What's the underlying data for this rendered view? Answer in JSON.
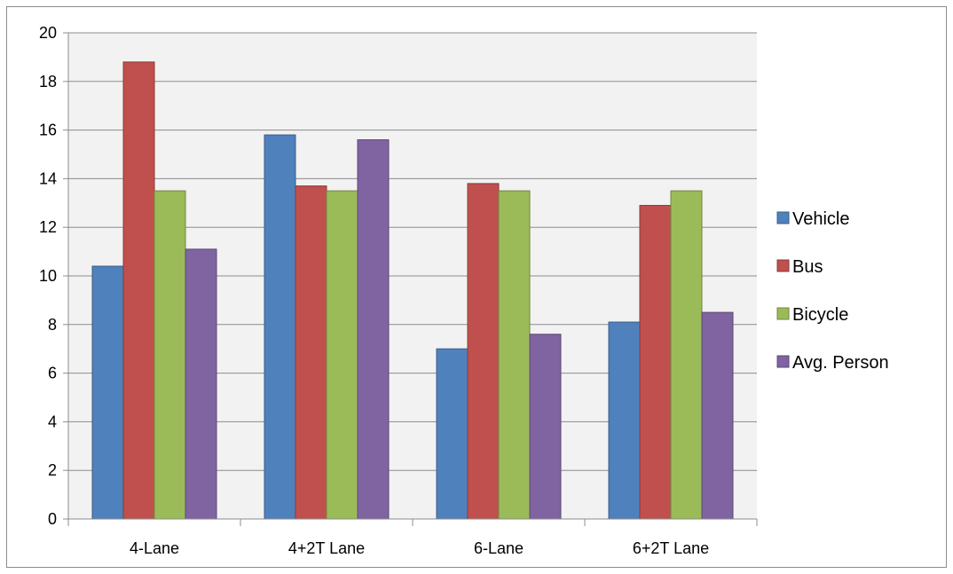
{
  "chart_data": {
    "type": "bar",
    "categories": [
      "4-Lane",
      "4+2T Lane",
      "6-Lane",
      "6+2T Lane"
    ],
    "series": [
      {
        "name": "Vehicle",
        "color": "#4f81bd",
        "values": [
          10.4,
          15.8,
          7.0,
          8.1
        ]
      },
      {
        "name": "Bus",
        "color": "#c0504d",
        "values": [
          18.8,
          13.7,
          13.8,
          12.9
        ]
      },
      {
        "name": "Bicycle",
        "color": "#9bbb59",
        "values": [
          13.5,
          13.5,
          13.5,
          13.5
        ]
      },
      {
        "name": "Avg. Person",
        "color": "#8064a2",
        "values": [
          11.1,
          15.6,
          7.6,
          8.5
        ]
      }
    ],
    "ylim": [
      0,
      20
    ],
    "yticks": [
      0,
      2,
      4,
      6,
      8,
      10,
      12,
      14,
      16,
      18,
      20
    ],
    "grid": true,
    "legend": "right",
    "plot_background": "#f2f2f2"
  }
}
